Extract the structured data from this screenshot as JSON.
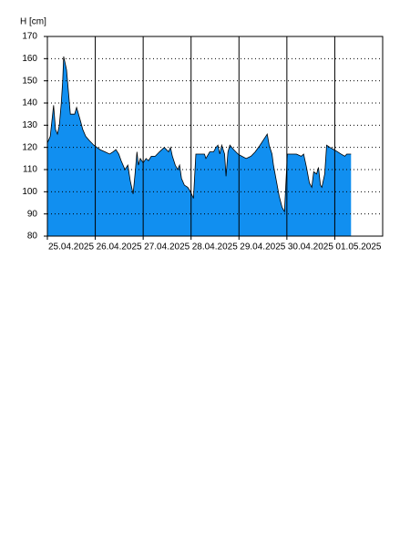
{
  "chart_data": {
    "type": "area",
    "y_label": "H [cm]",
    "x": [
      0,
      0.06,
      0.1,
      0.13,
      0.17,
      0.21,
      0.25,
      0.29,
      0.32,
      0.34,
      0.38,
      0.4,
      0.44,
      0.48,
      0.53,
      0.57,
      0.61,
      0.65,
      0.69,
      0.74,
      0.8,
      0.88,
      0.97,
      1.1,
      1.2,
      1.3,
      1.37,
      1.43,
      1.49,
      1.54,
      1.62,
      1.68,
      1.73,
      1.79,
      1.83,
      1.87,
      1.9,
      1.94,
      2.0,
      2.06,
      2.11,
      2.17,
      2.25,
      2.34,
      2.44,
      2.53,
      2.57,
      2.61,
      2.67,
      2.72,
      2.76,
      2.8,
      2.86,
      2.93,
      2.99,
      3.05,
      3.1,
      3.2,
      3.28,
      3.31,
      3.39,
      3.47,
      3.52,
      3.56,
      3.6,
      3.64,
      3.7,
      3.73,
      3.77,
      3.81,
      3.89,
      3.98,
      4.06,
      4.15,
      4.25,
      4.34,
      4.44,
      4.53,
      4.59,
      4.63,
      4.69,
      4.72,
      4.78,
      4.84,
      4.9,
      4.95,
      5.01,
      5.1,
      5.2,
      5.3,
      5.35,
      5.41,
      5.47,
      5.52,
      5.56,
      5.62,
      5.66,
      5.7,
      5.73,
      5.79,
      5.83,
      5.9,
      5.98,
      6.06,
      6.13,
      6.21,
      6.25,
      6.34
    ],
    "values": [
      122,
      125,
      133,
      139,
      128,
      126,
      130,
      140,
      150,
      161,
      157,
      155,
      145,
      135,
      135,
      135,
      138,
      135,
      132,
      128,
      125,
      123,
      121,
      119,
      118,
      117,
      118,
      119,
      117,
      114,
      110,
      112,
      105,
      99,
      108,
      118,
      112,
      115,
      113,
      115,
      114,
      116,
      116,
      118,
      120,
      118,
      120,
      116,
      112,
      110,
      112,
      106,
      103,
      102,
      100,
      97,
      117,
      117,
      117,
      115,
      118,
      118,
      120,
      121,
      117,
      121,
      117,
      107,
      118,
      121,
      119,
      117,
      116,
      115,
      116,
      118,
      121,
      124,
      126,
      121,
      117,
      112,
      105,
      98,
      93,
      91,
      117,
      117,
      117,
      116,
      117,
      111,
      104,
      102,
      109,
      108,
      111,
      103,
      102,
      108,
      121,
      120,
      119,
      118,
      117,
      116,
      117,
      117
    ],
    "color": "#118ff0",
    "xlim": [
      0,
      7
    ],
    "xticks": [
      {
        "value": 0,
        "label": "25.04.2025"
      },
      {
        "value": 1,
        "label": "26.04.2025"
      },
      {
        "value": 2,
        "label": "27.04.2025"
      },
      {
        "value": 3,
        "label": "28.04.2025"
      },
      {
        "value": 4,
        "label": "29.04.2025"
      },
      {
        "value": 5,
        "label": "30.04.2025"
      },
      {
        "value": 6,
        "label": "01.05.2025"
      }
    ],
    "ylim": [
      80,
      170
    ],
    "yticks": [
      80,
      90,
      100,
      110,
      120,
      130,
      140,
      150,
      160,
      170
    ],
    "grid": true
  }
}
